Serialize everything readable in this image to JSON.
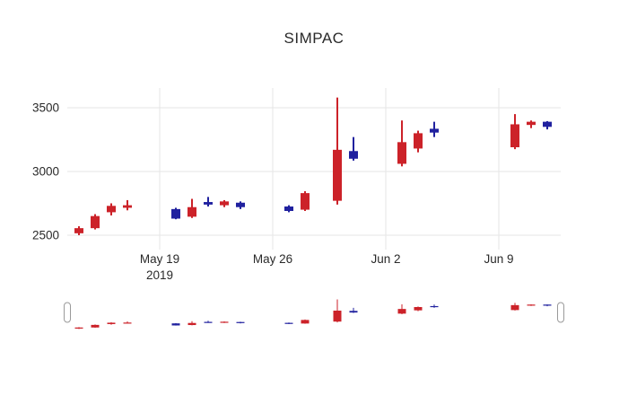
{
  "chart_data": {
    "type": "candlestick",
    "title": "SIMPAC",
    "up_color": "#cc2229",
    "down_color": "#20219f",
    "grid_color": "#e6e6e6",
    "text_color": "#2a2a2a",
    "handle_border_color": "#9a9a9a",
    "y_ticks": [
      2500,
      3000,
      3500
    ],
    "y_range": [
      2387,
      3655
    ],
    "rangeslider": true,
    "rangeslider_value_range": [
      2450,
      3660
    ],
    "x_ticks": [
      {
        "date": "2019-05-19",
        "label": "May 19",
        "sublabel": "2019"
      },
      {
        "date": "2019-05-26",
        "label": "May 26"
      },
      {
        "date": "2019-06-02",
        "label": "Jun 2"
      },
      {
        "date": "2019-06-09",
        "label": "Jun 9"
      }
    ],
    "ohlc": [
      {
        "date": "2019-05-14",
        "open": 2515,
        "high": 2570,
        "low": 2500,
        "close": 2555
      },
      {
        "date": "2019-05-15",
        "open": 2555,
        "high": 2665,
        "low": 2545,
        "close": 2650
      },
      {
        "date": "2019-05-16",
        "open": 2680,
        "high": 2750,
        "low": 2655,
        "close": 2730
      },
      {
        "date": "2019-05-17",
        "open": 2715,
        "high": 2775,
        "low": 2695,
        "close": 2735
      },
      {
        "date": "2019-05-20",
        "open": 2705,
        "high": 2715,
        "low": 2625,
        "close": 2630
      },
      {
        "date": "2019-05-21",
        "open": 2645,
        "high": 2785,
        "low": 2635,
        "close": 2720
      },
      {
        "date": "2019-05-22",
        "open": 2760,
        "high": 2800,
        "low": 2725,
        "close": 2740
      },
      {
        "date": "2019-05-23",
        "open": 2735,
        "high": 2775,
        "low": 2720,
        "close": 2765
      },
      {
        "date": "2019-05-24",
        "open": 2755,
        "high": 2765,
        "low": 2705,
        "close": 2720
      },
      {
        "date": "2019-05-27",
        "open": 2725,
        "high": 2735,
        "low": 2680,
        "close": 2690
      },
      {
        "date": "2019-05-28",
        "open": 2700,
        "high": 2845,
        "low": 2690,
        "close": 2830
      },
      {
        "date": "2019-05-30",
        "open": 2770,
        "high": 3580,
        "low": 2740,
        "close": 3170
      },
      {
        "date": "2019-05-31",
        "open": 3160,
        "high": 3270,
        "low": 3085,
        "close": 3100
      },
      {
        "date": "2019-06-03",
        "open": 3060,
        "high": 3400,
        "low": 3040,
        "close": 3230
      },
      {
        "date": "2019-06-04",
        "open": 3180,
        "high": 3320,
        "low": 3150,
        "close": 3300
      },
      {
        "date": "2019-06-05",
        "open": 3335,
        "high": 3390,
        "low": 3270,
        "close": 3305
      },
      {
        "date": "2019-06-10",
        "open": 3190,
        "high": 3450,
        "low": 3175,
        "close": 3370
      },
      {
        "date": "2019-06-11",
        "open": 3365,
        "high": 3400,
        "low": 3340,
        "close": 3390
      },
      {
        "date": "2019-06-12",
        "open": 3390,
        "high": 3395,
        "low": 3330,
        "close": 3350
      }
    ]
  }
}
